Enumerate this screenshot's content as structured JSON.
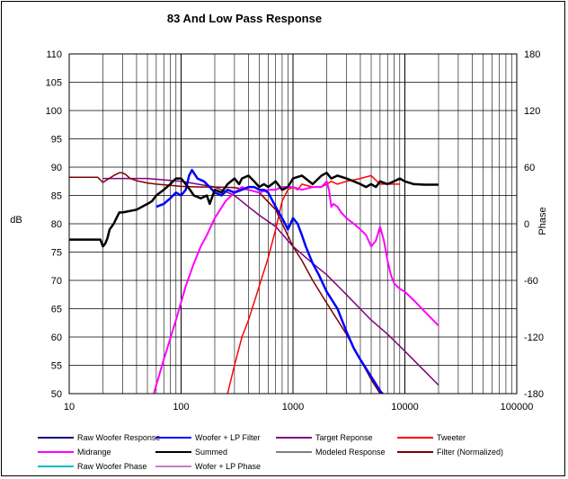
{
  "chart_data": {
    "type": "line",
    "title": "83  And Low Pass Response",
    "xlabel": "",
    "ylabel": "dB",
    "y2label": "Phase",
    "xscale": "log",
    "xlim": [
      10,
      100000
    ],
    "ylim": [
      50,
      110
    ],
    "y2lim": [
      -180,
      180
    ],
    "x_tick_labels": [
      "10",
      "100",
      "1000",
      "10000",
      "100000"
    ],
    "x_tick_values": [
      10,
      100,
      1000,
      10000,
      100000
    ],
    "y_tick_values": [
      50,
      55,
      60,
      65,
      70,
      75,
      80,
      85,
      90,
      95,
      100,
      105,
      110
    ],
    "y_tick_labels": [
      "50",
      "55",
      "60",
      "65",
      "70",
      "75",
      "80",
      "85",
      "90",
      "95",
      "100",
      "105",
      "110"
    ],
    "y2_tick_values": [
      -180,
      -120,
      -60,
      0,
      60,
      120,
      180
    ],
    "y2_tick_labels": [
      "-180",
      "-120",
      "-60",
      "0",
      "60",
      "120",
      "180"
    ],
    "grid": true,
    "legend_position": "bottom",
    "legend": [
      {
        "name": "Raw Woofer Response",
        "color": "#000080"
      },
      {
        "name": "Woofer + LP Filter",
        "color": "#0000FF"
      },
      {
        "name": "Target Reponse",
        "color": "#800080"
      },
      {
        "name": "Tweeter",
        "color": "#FF0000"
      },
      {
        "name": "Midrange",
        "color": "#FF00FF"
      },
      {
        "name": "Summed",
        "color": "#000000"
      },
      {
        "name": "Modeled Response",
        "color": "#808080"
      },
      {
        "name": "Filter (Normalized)",
        "color": "#800000"
      },
      {
        "name": "Raw Woofer Phase",
        "color": "#00C0C0"
      },
      {
        "name": "Wofer + LP  Phase",
        "color": "#C080C0"
      }
    ],
    "series": [
      {
        "name": "Woofer + LP Filter",
        "color": "#0000FF",
        "width": 2.5,
        "x": [
          60,
          70,
          80,
          90,
          100,
          110,
          118,
          125,
          140,
          160,
          180,
          200,
          230,
          260,
          300,
          350,
          400,
          450,
          500,
          550,
          600,
          700,
          800,
          850,
          900,
          950,
          1000,
          1100,
          1200,
          1300,
          1500,
          1700,
          2000,
          2500,
          3000,
          3500,
          4000,
          5000,
          6000,
          7000
        ],
        "y": [
          83,
          83.5,
          84.5,
          85.5,
          85,
          86,
          88.5,
          89.5,
          88,
          87.5,
          86.5,
          85.5,
          85,
          86,
          85.5,
          86,
          86.5,
          86.5,
          86,
          86,
          85.5,
          83,
          81,
          80,
          79,
          80,
          81,
          80,
          78,
          76,
          73,
          71,
          68,
          65,
          61,
          58,
          56,
          53,
          50.5,
          49
        ]
      },
      {
        "name": "Summed",
        "color": "#000000",
        "width": 2.5,
        "x": [
          10,
          19,
          20,
          21,
          22,
          23,
          25,
          28,
          30,
          40,
          50,
          55,
          60,
          70,
          80,
          90,
          100,
          110,
          120,
          130,
          150,
          170,
          180,
          200,
          230,
          260,
          300,
          330,
          350,
          400,
          450,
          500,
          550,
          600,
          700,
          800,
          900,
          1000,
          1200,
          1500,
          1800,
          2000,
          2200,
          2500,
          3000,
          3500,
          4000,
          4500,
          5000,
          5500,
          6000,
          7000,
          8000,
          9000,
          10000,
          12000,
          15000,
          20000
        ],
        "y": [
          77.2,
          77.2,
          76,
          76.5,
          77.5,
          79,
          80,
          82,
          82,
          82.5,
          83.5,
          84,
          85,
          86,
          87,
          88,
          88,
          87,
          86,
          85,
          84.5,
          85,
          83.5,
          86,
          85.5,
          87,
          88,
          87,
          88,
          88.5,
          87.5,
          86.5,
          87,
          86.5,
          87.5,
          86,
          86.5,
          88,
          88.5,
          87,
          88.5,
          89,
          88,
          88.5,
          88,
          87.5,
          87,
          86.5,
          87,
          86.5,
          87.5,
          87,
          87.5,
          88,
          87.5,
          87,
          86.9,
          86.9
        ]
      },
      {
        "name": "Midrange",
        "color": "#FF00FF",
        "width": 2,
        "x": [
          57,
          70,
          90,
          110,
          130,
          150,
          170,
          200,
          250,
          300,
          350,
          400,
          500,
          600,
          700,
          800,
          900,
          1000,
          1200,
          1500,
          1800,
          2000,
          2100,
          2200,
          2300,
          2500,
          2700,
          3000,
          3500,
          4000,
          4500,
          5000,
          5500,
          6000,
          6500,
          7000,
          7500,
          8000,
          9000,
          10000,
          12000,
          15000,
          20000
        ],
        "y": [
          50,
          56,
          63,
          69,
          73,
          76,
          78,
          81,
          84,
          85.5,
          86.5,
          86,
          85.5,
          86,
          86,
          86.5,
          86.5,
          86.5,
          86,
          86.5,
          86.5,
          87.5,
          86,
          83,
          83.5,
          83,
          82,
          81,
          80,
          79,
          78,
          76,
          77,
          79.5,
          77,
          73.5,
          71,
          69.5,
          68.5,
          68,
          66.5,
          64.5,
          62
        ]
      },
      {
        "name": "Tweeter",
        "color": "#FF0000",
        "width": 1.5,
        "x": [
          260,
          300,
          350,
          400,
          500,
          600,
          700,
          800,
          900,
          1000,
          1100,
          1200,
          1500,
          1800,
          2000,
          2200,
          2500,
          3000,
          4000,
          5000,
          6000,
          7000,
          8000,
          9000
        ],
        "y": [
          50,
          55,
          60,
          63,
          69,
          74,
          79,
          84,
          86,
          86.5,
          86,
          87,
          86.5,
          86.5,
          87,
          87.5,
          87,
          87.5,
          88,
          88.5,
          87,
          87,
          87,
          87
        ]
      },
      {
        "name": "Target Reponse",
        "color": "#800080",
        "width": 1.5,
        "x": [
          20,
          30,
          50,
          100,
          200,
          300,
          400,
          500,
          700,
          1000,
          1500,
          2000,
          3000,
          5000,
          7000,
          10000,
          15000,
          20000
        ],
        "y": [
          88,
          88,
          88,
          87.5,
          86.5,
          85,
          83,
          81.5,
          79.5,
          76,
          73,
          71,
          67.5,
          63,
          60.5,
          57.5,
          54,
          51.5
        ]
      },
      {
        "name": "Filter (Normalized)",
        "color": "#800000",
        "width": 1.5,
        "x": [
          10,
          18,
          20,
          25,
          28,
          30,
          32,
          35,
          40,
          50,
          60,
          80,
          100,
          150,
          200,
          300,
          400,
          500,
          700,
          1000,
          1200,
          1500,
          2000,
          2500,
          3000,
          4000,
          5000,
          6000,
          7000
        ],
        "y": [
          88.2,
          88.2,
          87.3,
          88.5,
          89,
          89,
          88.7,
          88,
          87.6,
          87.2,
          87,
          86.8,
          86.6,
          86.5,
          86.5,
          86.4,
          86,
          85.5,
          82.5,
          76,
          73.5,
          70,
          66,
          63,
          60.5,
          56,
          52.5,
          50,
          47
        ]
      }
    ]
  }
}
